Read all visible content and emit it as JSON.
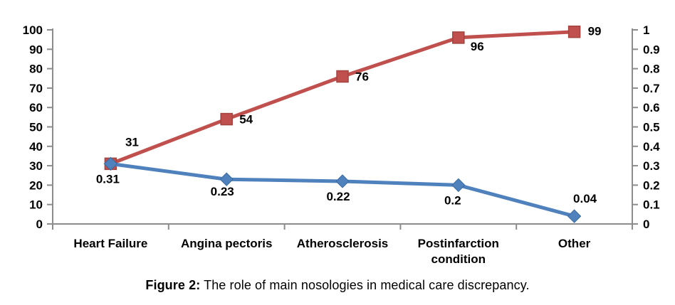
{
  "figure": {
    "caption_label": "Figure 2:",
    "caption_text": "The role of main nosologies in medical care discrepancy."
  },
  "chart_data": {
    "type": "line",
    "title": "",
    "xlabel": "",
    "ylabel": "",
    "grid": false,
    "legend": "none",
    "categories": [
      "Heart Failure",
      "Angina pectoris",
      "Atherosclerosis",
      "Postinfarction condition",
      "Other"
    ],
    "series": [
      {
        "name": "absolute-count-series",
        "axis": "left",
        "marker": "square",
        "color": "#c0504d",
        "marker_stroke": "#a34340",
        "values": [
          31,
          54,
          76,
          96,
          99
        ],
        "labels": [
          "31",
          "54",
          "76",
          "96",
          "99"
        ]
      },
      {
        "name": "share-series",
        "axis": "right",
        "marker": "diamond",
        "color": "#4f81bd",
        "marker_stroke": "#3a6aa0",
        "values": [
          0.31,
          0.23,
          0.22,
          0.2,
          0.04
        ],
        "labels": [
          "0.31",
          "0.23",
          "0.22",
          "0.2",
          "0.04"
        ]
      }
    ],
    "left_axis": {
      "min": 0,
      "max": 100,
      "step": 10,
      "ticks": [
        "0",
        "10",
        "20",
        "30",
        "40",
        "50",
        "60",
        "70",
        "80",
        "90",
        "100"
      ]
    },
    "right_axis": {
      "min": 0,
      "max": 1,
      "step": 0.1,
      "ticks": [
        "0",
        "0.1",
        "0.2",
        "0.3",
        "0.4",
        "0.5",
        "0.6",
        "0.7",
        "0.8",
        "0.9",
        "1"
      ]
    },
    "axis_color": "#8c8c8c",
    "text_color": "#000000"
  }
}
